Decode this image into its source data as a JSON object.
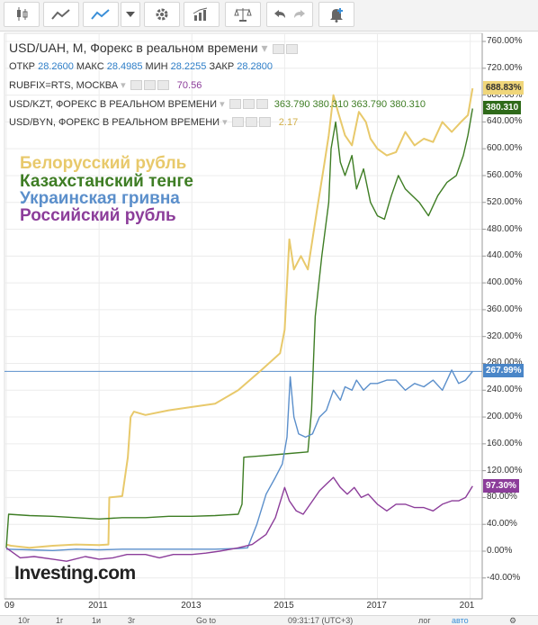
{
  "toolbar": {
    "buttons": [
      "candles-icon",
      "area-chart-icon",
      "line-chart-icon",
      "dropdown-icon",
      "gear-icon",
      "bar-chart-icon",
      "scales-icon",
      "undo-icon",
      "redo-icon",
      "bell-plus-icon"
    ]
  },
  "legend": {
    "main_title": "USD/UAH, M, Форекс в реальном времени",
    "ohlc": {
      "open_label": "ОТКР",
      "open": "28.2600",
      "high_label": "МАКС",
      "high": "28.4985",
      "low_label": "МИН",
      "low": "28.2255",
      "close_label": "ЗАКР",
      "close": "28.2800"
    },
    "rub": {
      "label": "RUBFIX=RTS, МОСКВА",
      "value": "70.56"
    },
    "kzt": {
      "label": "USD/KZT, ФОРЕКС В РЕАЛЬНОМ ВРЕМЕНИ",
      "v1": "363.790",
      "v2": "380.310",
      "v3": "363.790",
      "v4": "380.310"
    },
    "byn": {
      "label": "USD/BYN, ФОРЕКС В РЕАЛЬНОМ ВРЕМЕНИ",
      "value": "2.17"
    }
  },
  "annotations": {
    "byn": "Белорусский рубль",
    "kzt": "Казахстанский тенге",
    "uah": "Украинская гривна",
    "rub": "Российский рубль"
  },
  "badges": {
    "byn": "688.83%",
    "kzt": "380.310",
    "uah": "267.99%",
    "rub": "97.30%"
  },
  "watermark": "Investing.com",
  "bottom_bar": {
    "items": [
      "10г",
      "1г",
      "1и",
      "3г",
      "Go to",
      "09:31:17 (UTC+3)",
      "лог",
      "авто"
    ]
  },
  "colors": {
    "byn": "#e8c96b",
    "kzt": "#3e7d24",
    "uah": "#5b8fcb",
    "rub": "#8c3d9a"
  },
  "chart_data": {
    "type": "line",
    "title": "USD/UAH, M, Форекс в реальном времени",
    "y_unit": "%",
    "ylim": [
      -50,
      775
    ],
    "y_ticks": [
      -40,
      0,
      40,
      80,
      120,
      160,
      200,
      240,
      280,
      320,
      360,
      400,
      440,
      480,
      520,
      560,
      600,
      640,
      680,
      720,
      760
    ],
    "x_ticks": [
      "09",
      "2011",
      "2013",
      "2015",
      "2017",
      "201"
    ],
    "xlim": [
      2009.0,
      2019.2
    ],
    "grid": true,
    "series": [
      {
        "name": "Белорусский рубль",
        "key": "byn",
        "x": [
          2009.0,
          2009.1,
          2009.5,
          2010.0,
          2010.5,
          2011.0,
          2011.2,
          2011.22,
          2011.5,
          2011.62,
          2011.68,
          2011.75,
          2012.0,
          2012.5,
          2013.0,
          2013.5,
          2014.0,
          2014.5,
          2014.9,
          2015.0,
          2015.1,
          2015.2,
          2015.35,
          2015.5,
          2015.7,
          2015.85,
          2015.95,
          2016.05,
          2016.15,
          2016.3,
          2016.45,
          2016.6,
          2016.75,
          2016.85,
          2017.0,
          2017.2,
          2017.4,
          2017.6,
          2017.8,
          2018.0,
          2018.2,
          2018.4,
          2018.6,
          2018.8,
          2018.95,
          2019.05
        ],
        "values": [
          10,
          8,
          5,
          8,
          10,
          9,
          10,
          80,
          82,
          140,
          200,
          208,
          203,
          210,
          215,
          220,
          240,
          270,
          295,
          330,
          465,
          420,
          440,
          420,
          510,
          575,
          620,
          680,
          655,
          620,
          605,
          655,
          640,
          615,
          600,
          590,
          595,
          625,
          605,
          615,
          610,
          640,
          625,
          640,
          650,
          690
        ]
      },
      {
        "name": "Казахстанский тенге",
        "key": "kzt",
        "x": [
          2009.0,
          2009.05,
          2009.5,
          2010.0,
          2010.5,
          2011.0,
          2011.5,
          2012.0,
          2012.5,
          2013.0,
          2013.5,
          2014.0,
          2014.08,
          2014.12,
          2014.5,
          2015.0,
          2015.5,
          2015.58,
          2015.66,
          2015.8,
          2015.95,
          2016.0,
          2016.1,
          2016.2,
          2016.3,
          2016.45,
          2016.55,
          2016.7,
          2016.85,
          2017.0,
          2017.15,
          2017.3,
          2017.45,
          2017.6,
          2017.75,
          2017.9,
          2018.1,
          2018.3,
          2018.5,
          2018.7,
          2018.85,
          2018.95,
          2019.05
        ],
        "values": [
          5,
          55,
          53,
          52,
          50,
          48,
          50,
          50,
          52,
          52,
          53,
          55,
          70,
          140,
          142,
          145,
          148,
          210,
          350,
          440,
          520,
          600,
          640,
          580,
          560,
          590,
          540,
          570,
          520,
          500,
          495,
          530,
          560,
          540,
          530,
          520,
          500,
          530,
          550,
          560,
          590,
          620,
          660
        ]
      },
      {
        "name": "Украинская гривна",
        "key": "uah",
        "x": [
          2009.0,
          2009.5,
          2010.0,
          2010.5,
          2011.0,
          2011.5,
          2012.0,
          2012.5,
          2013.0,
          2013.5,
          2014.0,
          2014.2,
          2014.4,
          2014.6,
          2014.8,
          2014.95,
          2015.05,
          2015.12,
          2015.2,
          2015.3,
          2015.45,
          2015.6,
          2015.75,
          2015.9,
          2016.05,
          2016.2,
          2016.3,
          2016.45,
          2016.55,
          2016.7,
          2016.85,
          2017.0,
          2017.2,
          2017.4,
          2017.6,
          2017.8,
          2018.0,
          2018.2,
          2018.4,
          2018.6,
          2018.75,
          2018.9,
          2019.05
        ],
        "values": [
          3,
          2,
          1,
          3,
          2,
          3,
          3,
          3,
          3,
          3,
          4,
          5,
          40,
          85,
          110,
          130,
          170,
          260,
          200,
          175,
          170,
          175,
          200,
          210,
          240,
          225,
          245,
          240,
          255,
          240,
          250,
          250,
          255,
          255,
          240,
          250,
          245,
          255,
          240,
          270,
          250,
          255,
          268
        ]
      },
      {
        "name": "Российский рубль",
        "key": "rub",
        "x": [
          2009.0,
          2009.3,
          2009.6,
          2010.0,
          2010.3,
          2010.7,
          2011.0,
          2011.3,
          2011.6,
          2012.0,
          2012.3,
          2012.6,
          2013.0,
          2013.3,
          2013.6,
          2014.0,
          2014.3,
          2014.6,
          2014.8,
          2015.0,
          2015.1,
          2015.25,
          2015.4,
          2015.6,
          2015.75,
          2015.9,
          2016.05,
          2016.2,
          2016.35,
          2016.5,
          2016.65,
          2016.8,
          2017.0,
          2017.2,
          2017.4,
          2017.6,
          2017.8,
          2018.0,
          2018.2,
          2018.4,
          2018.6,
          2018.75,
          2018.9,
          2019.05
        ],
        "values": [
          5,
          -10,
          -8,
          -12,
          -15,
          -8,
          -12,
          -10,
          -5,
          -5,
          -10,
          -5,
          -5,
          -3,
          0,
          5,
          10,
          25,
          50,
          95,
          75,
          60,
          55,
          75,
          90,
          100,
          110,
          95,
          85,
          95,
          80,
          85,
          70,
          60,
          70,
          70,
          65,
          65,
          60,
          70,
          75,
          75,
          80,
          97
        ]
      }
    ]
  }
}
